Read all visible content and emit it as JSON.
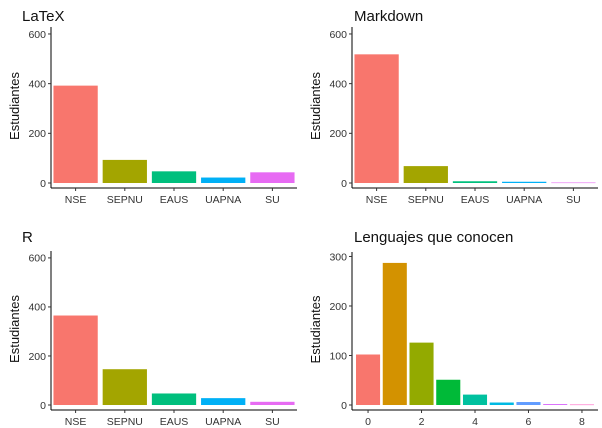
{
  "chart_data": [
    {
      "type": "bar",
      "title": "LaTeX",
      "ylabel": "Estudiantes",
      "xlabel": "",
      "categories": [
        "NSE",
        "SEPNU",
        "EAUS",
        "UAPNA",
        "SU"
      ],
      "values": [
        392,
        93,
        47,
        22,
        43
      ],
      "ylim": [
        0,
        620
      ],
      "yticks": [
        0,
        200,
        400,
        600
      ],
      "colors": [
        "#F8766D",
        "#A3A500",
        "#00BF7D",
        "#00B0F6",
        "#E76BF3"
      ],
      "grid": false,
      "legend": "none"
    },
    {
      "type": "bar",
      "title": "Markdown",
      "ylabel": "Estudiantes",
      "xlabel": "",
      "categories": [
        "NSE",
        "SEPNU",
        "EAUS",
        "UAPNA",
        "SU"
      ],
      "values": [
        518,
        68,
        7,
        5,
        2
      ],
      "ylim": [
        0,
        620
      ],
      "yticks": [
        0,
        200,
        400,
        600
      ],
      "colors": [
        "#F8766D",
        "#A3A500",
        "#00BF7D",
        "#00B0F6",
        "#E76BF3"
      ],
      "grid": false,
      "legend": "none"
    },
    {
      "type": "bar",
      "title": "R",
      "ylabel": "Estudiantes",
      "xlabel": "",
      "categories": [
        "NSE",
        "SEPNU",
        "EAUS",
        "UAPNA",
        "SU"
      ],
      "values": [
        365,
        146,
        47,
        28,
        13
      ],
      "ylim": [
        0,
        620
      ],
      "yticks": [
        0,
        200,
        400,
        600
      ],
      "colors": [
        "#F8766D",
        "#A3A500",
        "#00BF7D",
        "#00B0F6",
        "#E76BF3"
      ],
      "grid": false,
      "legend": "none"
    },
    {
      "type": "bar",
      "title": "Lenguajes que conocen",
      "ylabel": "Estudiantes",
      "xlabel": "",
      "x": [
        0,
        1,
        2,
        3,
        4,
        5,
        6,
        7,
        8
      ],
      "values": [
        102,
        287,
        126,
        51,
        21,
        5,
        6,
        2,
        1
      ],
      "xlim": [
        -0.6,
        8.6
      ],
      "xticks": [
        0,
        2,
        4,
        6,
        8
      ],
      "ylim": [
        0,
        305
      ],
      "yticks": [
        0,
        100,
        200,
        300
      ],
      "colors": [
        "#F8766D",
        "#D39200",
        "#93AA00",
        "#00BA38",
        "#00C19F",
        "#00B9E3",
        "#619CFF",
        "#DB72FB",
        "#FF61C3"
      ],
      "grid": false,
      "legend": "none"
    }
  ]
}
